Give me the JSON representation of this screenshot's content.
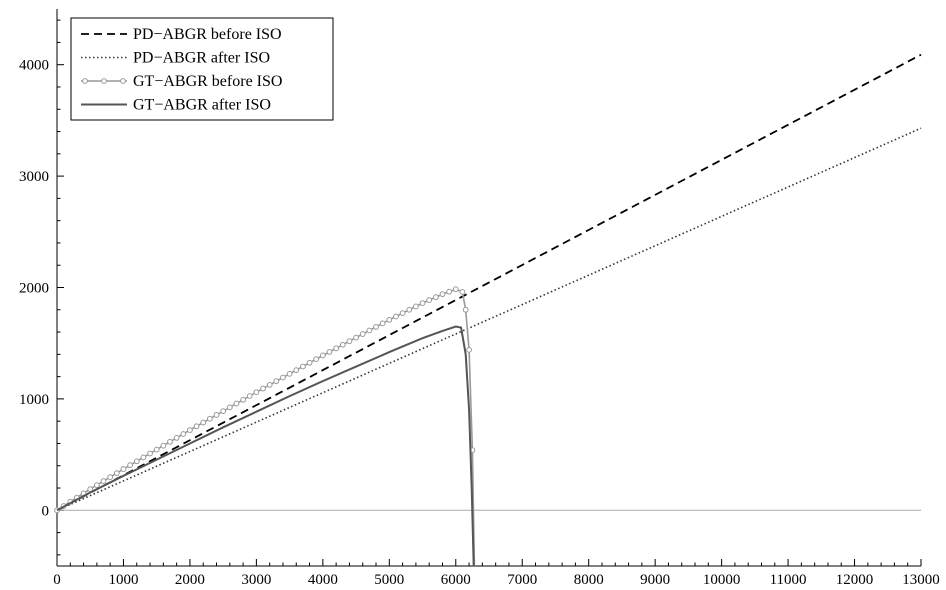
{
  "chart_data": {
    "type": "line",
    "title": "",
    "xlabel": "",
    "ylabel": "",
    "xlim": [
      0,
      13000
    ],
    "ylim": [
      -500,
      4500
    ],
    "x_ticks": [
      0,
      1000,
      2000,
      3000,
      4000,
      5000,
      6000,
      7000,
      8000,
      9000,
      10000,
      11000,
      12000,
      13000
    ],
    "y_ticks": [
      0,
      1000,
      2000,
      3000,
      4000
    ],
    "grid": false,
    "zero_line": true,
    "legend_position": "top-left",
    "series": [
      {
        "name": "PD−ABGR before ISO",
        "style": "dashed",
        "color": "#000000",
        "x": [
          0,
          13000
        ],
        "y": [
          0,
          4090
        ]
      },
      {
        "name": "PD−ABGR after ISO",
        "style": "dotted",
        "color": "#333333",
        "x": [
          0,
          13000
        ],
        "y": [
          0,
          3430
        ]
      },
      {
        "name": "GT−ABGR before ISO",
        "style": "line-with-circles",
        "color": "#999999",
        "x": [
          0,
          500,
          1000,
          1500,
          2000,
          2500,
          3000,
          3500,
          4000,
          4500,
          5000,
          5500,
          5800,
          6000,
          6100,
          6150,
          6200,
          6250,
          6280
        ],
        "y": [
          0,
          190,
          370,
          545,
          720,
          890,
          1060,
          1225,
          1390,
          1550,
          1710,
          1860,
          1940,
          1985,
          1960,
          1800,
          1440,
          540,
          -500
        ]
      },
      {
        "name": "GT−ABGR after ISO",
        "style": "solid",
        "color": "#555555",
        "x": [
          0,
          500,
          1000,
          1500,
          2000,
          2500,
          3000,
          3500,
          4000,
          4500,
          5000,
          5500,
          5800,
          6000,
          6080,
          6150,
          6200,
          6240,
          6270
        ],
        "y": [
          0,
          160,
          310,
          455,
          600,
          745,
          885,
          1025,
          1160,
          1290,
          1420,
          1545,
          1610,
          1650,
          1640,
          1400,
          900,
          200,
          -500
        ]
      }
    ]
  }
}
